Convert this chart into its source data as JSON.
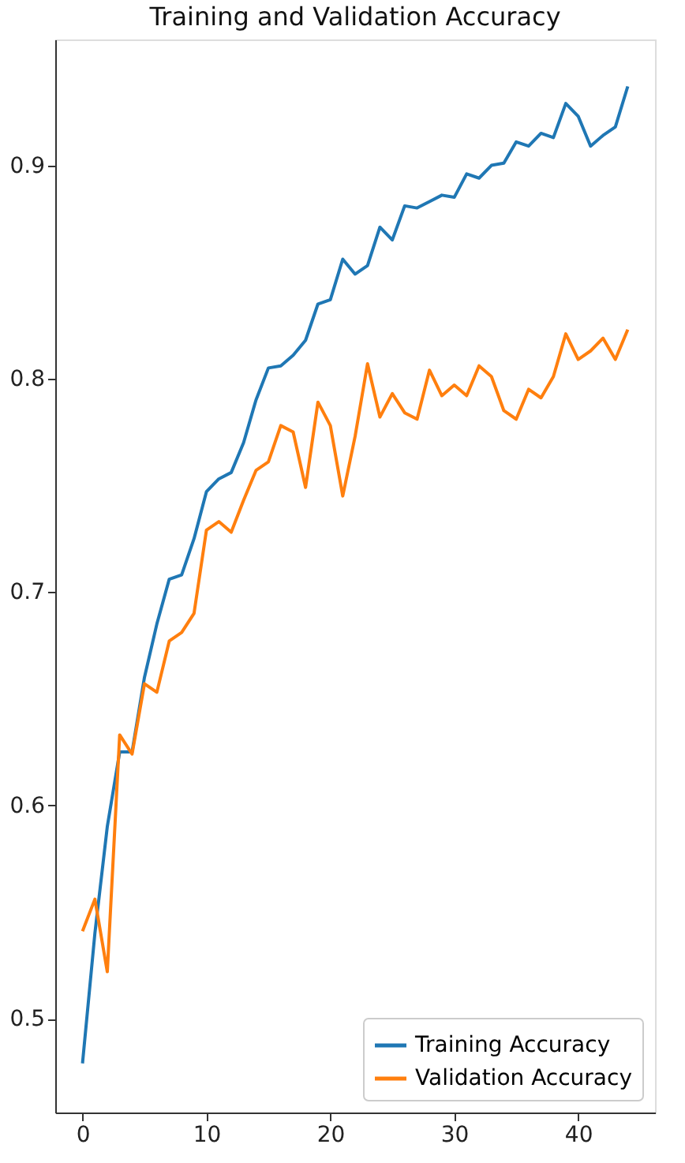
{
  "chart_data": {
    "type": "line",
    "title": "Training and Validation Accuracy",
    "x": [
      0,
      1,
      2,
      3,
      4,
      5,
      6,
      7,
      8,
      9,
      10,
      11,
      12,
      13,
      14,
      15,
      16,
      17,
      18,
      19,
      20,
      21,
      22,
      23,
      24,
      25,
      26,
      27,
      28,
      29,
      30,
      31,
      32,
      33,
      34,
      35,
      36,
      37,
      38,
      39,
      40,
      41,
      42,
      43,
      44
    ],
    "series": [
      {
        "name": "Training Accuracy",
        "color": "#1f77b4",
        "values": [
          0.479,
          0.54,
          0.59,
          0.625,
          0.625,
          0.66,
          0.685,
          0.706,
          0.708,
          0.725,
          0.747,
          0.753,
          0.756,
          0.77,
          0.79,
          0.805,
          0.806,
          0.811,
          0.818,
          0.835,
          0.837,
          0.856,
          0.849,
          0.853,
          0.871,
          0.865,
          0.881,
          0.88,
          0.883,
          0.886,
          0.885,
          0.896,
          0.894,
          0.9,
          0.901,
          0.911,
          0.909,
          0.915,
          0.913,
          0.929,
          0.923,
          0.909,
          0.914,
          0.918,
          0.937
        ]
      },
      {
        "name": "Validation Accuracy",
        "color": "#ff7f0e",
        "values": [
          0.541,
          0.556,
          0.522,
          0.633,
          0.624,
          0.657,
          0.653,
          0.677,
          0.681,
          0.69,
          0.729,
          0.733,
          0.728,
          0.743,
          0.757,
          0.761,
          0.778,
          0.775,
          0.749,
          0.789,
          0.778,
          0.745,
          0.773,
          0.807,
          0.782,
          0.793,
          0.784,
          0.781,
          0.804,
          0.792,
          0.797,
          0.792,
          0.806,
          0.801,
          0.785,
          0.781,
          0.795,
          0.791,
          0.801,
          0.821,
          0.809,
          0.813,
          0.819,
          0.809,
          0.823
        ]
      }
    ],
    "xlim": [
      -2.2,
      46.2
    ],
    "ylim": [
      0.456,
      0.959
    ],
    "xticks": [
      0,
      10,
      20,
      30,
      40
    ],
    "yticks": [
      0.5,
      0.6,
      0.7,
      0.8,
      0.9
    ],
    "grid": false,
    "legend": "bottom right",
    "marker": "none",
    "line_style": "solid"
  }
}
